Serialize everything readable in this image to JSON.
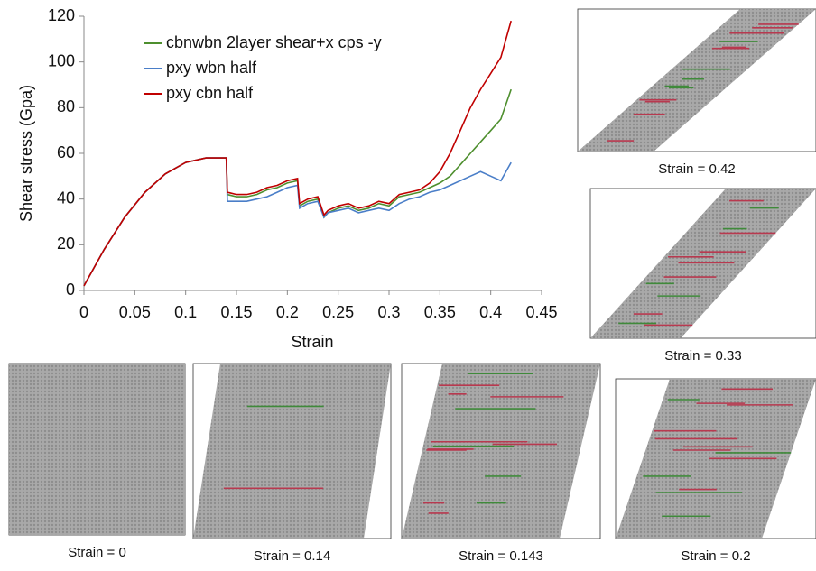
{
  "chart_data": {
    "type": "line",
    "ylabel": "Shear stress (Gpa)",
    "xlabel": "Strain",
    "xlim": [
      0,
      0.45
    ],
    "xticks": [
      0,
      0.05,
      0.1,
      0.15,
      0.2,
      0.25,
      0.3,
      0.35,
      0.4,
      0.45
    ],
    "ylim": [
      0,
      120
    ],
    "yticks": [
      0,
      20,
      40,
      60,
      80,
      100,
      120
    ],
    "x": [
      0,
      0.02,
      0.04,
      0.06,
      0.08,
      0.1,
      0.12,
      0.14,
      0.141,
      0.15,
      0.16,
      0.17,
      0.18,
      0.19,
      0.2,
      0.21,
      0.212,
      0.22,
      0.23,
      0.236,
      0.24,
      0.25,
      0.26,
      0.27,
      0.28,
      0.29,
      0.3,
      0.31,
      0.32,
      0.33,
      0.34,
      0.35,
      0.36,
      0.37,
      0.38,
      0.39,
      0.4,
      0.41,
      0.42
    ],
    "series": [
      {
        "name": "cbnwbn 2layer shear+x cps -y",
        "color": "#4e8f2e",
        "values": [
          2,
          18,
          32,
          43,
          51,
          56,
          58,
          58,
          42,
          41,
          41,
          42,
          44,
          45,
          47,
          48,
          37,
          39,
          40,
          32,
          34,
          36,
          37,
          35,
          36,
          38,
          37,
          41,
          42,
          43,
          45,
          47,
          50,
          55,
          60,
          65,
          70,
          75,
          88
        ]
      },
      {
        "name": "pxy wbn half",
        "color": "#4a7ec8",
        "values": [
          2,
          18,
          32,
          43,
          51,
          56,
          58,
          58,
          39,
          39,
          39,
          40,
          41,
          43,
          45,
          46,
          36,
          38,
          39,
          32,
          34,
          35,
          36,
          34,
          35,
          36,
          35,
          38,
          40,
          41,
          43,
          44,
          46,
          48,
          50,
          52,
          50,
          48,
          56
        ]
      },
      {
        "name": "pxy cbn half",
        "color": "#c00000",
        "values": [
          2,
          18,
          32,
          43,
          51,
          56,
          58,
          58,
          43,
          42,
          42,
          43,
          45,
          46,
          48,
          49,
          38,
          40,
          41,
          33,
          35,
          37,
          38,
          36,
          37,
          39,
          38,
          42,
          43,
          44,
          47,
          52,
          60,
          70,
          80,
          88,
          95,
          102,
          118
        ]
      }
    ]
  },
  "panels": [
    {
      "caption": "Strain = 0.42"
    },
    {
      "caption": "Strain = 0.33"
    },
    {
      "caption": "Strain = 0"
    },
    {
      "caption": "Strain = 0.14"
    },
    {
      "caption": "Strain = 0.143"
    },
    {
      "caption": "Strain = 0.2"
    }
  ]
}
